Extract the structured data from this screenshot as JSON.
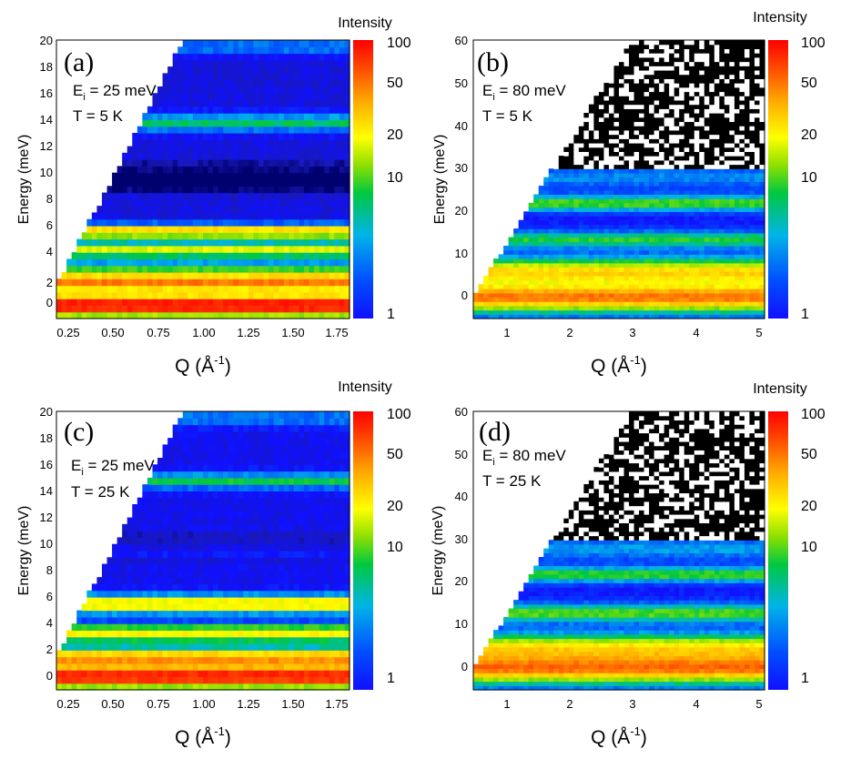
{
  "chart_data": [
    {
      "type": "heatmap",
      "label": "(a)",
      "annotation_main": "E",
      "annotation_sub": "i",
      "annotation_value": " = 25 meV",
      "temperature": "T = 5 K",
      "ylabel": "Energy (meV)",
      "xlabel_main": "Q (Å",
      "xlabel_sup": "-1",
      "xlabel_end": ")",
      "xticks": [
        "0.25",
        "0.50",
        "0.75",
        "1.00",
        "1.25",
        "1.50",
        "1.75"
      ],
      "yticks": [
        "0",
        "2",
        "4",
        "6",
        "8",
        "10",
        "12",
        "14",
        "16",
        "18",
        "20"
      ],
      "xlim": [
        0.18,
        1.82
      ],
      "ylim": [
        -1,
        20
      ],
      "bands_meV": [
        0,
        1.8,
        4.2,
        5.6,
        9.5,
        13.8,
        19.5
      ],
      "colorbar_title": "Intensity",
      "colorbar_ticks": [
        "100",
        "50",
        "20",
        "10",
        "1"
      ],
      "colorbar_range": [
        1,
        100
      ]
    },
    {
      "type": "heatmap",
      "label": "(b)",
      "annotation_main": "E",
      "annotation_sub": "i",
      "annotation_value": " = 80 meV",
      "temperature": "T = 5 K",
      "ylabel": "Energy (meV)",
      "xlabel_main": "Q (Å",
      "xlabel_sup": "-1",
      "xlabel_end": ")",
      "xticks": [
        "1",
        "2",
        "3",
        "4",
        "5"
      ],
      "yticks": [
        "0",
        "10",
        "20",
        "30",
        "40",
        "50",
        "60"
      ],
      "xlim": [
        0.5,
        5.1
      ],
      "ylim": [
        -5,
        60
      ],
      "bands_meV": [
        0,
        6,
        13.5,
        22,
        28
      ],
      "colorbar_title": "Intensity",
      "colorbar_ticks": [
        "100",
        "50",
        "20",
        "10",
        "1"
      ],
      "colorbar_range": [
        1,
        100
      ]
    },
    {
      "type": "heatmap",
      "label": "(c)",
      "annotation_main": "E",
      "annotation_sub": "i",
      "annotation_value": " = 25 meV",
      "temperature": "T = 25 K",
      "ylabel": "Energy (meV)",
      "xlabel_main": "Q (Å",
      "xlabel_sup": "-1",
      "xlabel_end": ")",
      "xticks": [
        "0.25",
        "0.50",
        "0.75",
        "1.00",
        "1.25",
        "1.50",
        "1.75"
      ],
      "yticks": [
        "0",
        "2",
        "4",
        "6",
        "8",
        "10",
        "12",
        "14",
        "16",
        "18",
        "20"
      ],
      "xlim": [
        0.18,
        1.82
      ],
      "ylim": [
        -1,
        20
      ],
      "bands_meV": [
        0,
        1.5,
        3.3,
        5.5,
        9.3,
        14.8,
        19.5
      ],
      "colorbar_title": "Intensity",
      "colorbar_ticks": [
        "100",
        "50",
        "20",
        "10",
        "1"
      ],
      "colorbar_range": [
        1,
        100
      ]
    },
    {
      "type": "heatmap",
      "label": "(d)",
      "annotation_main": "E",
      "annotation_sub": "i",
      "annotation_value": " = 80 meV",
      "temperature": "T = 25 K",
      "ylabel": "Energy (meV)",
      "xlabel_main": "Q (Å",
      "xlabel_sup": "-1",
      "xlabel_end": ")",
      "xticks": [
        "1",
        "2",
        "3",
        "4",
        "5"
      ],
      "yticks": [
        "0",
        "10",
        "20",
        "30",
        "40",
        "50",
        "60"
      ],
      "xlim": [
        0.5,
        5.1
      ],
      "ylim": [
        -5,
        60
      ],
      "bands_meV": [
        0,
        5,
        13,
        22,
        28
      ],
      "colorbar_title": "Intensity",
      "colorbar_ticks": [
        "100",
        "50",
        "20",
        "10",
        "1"
      ],
      "colorbar_range": [
        1,
        100
      ]
    }
  ]
}
